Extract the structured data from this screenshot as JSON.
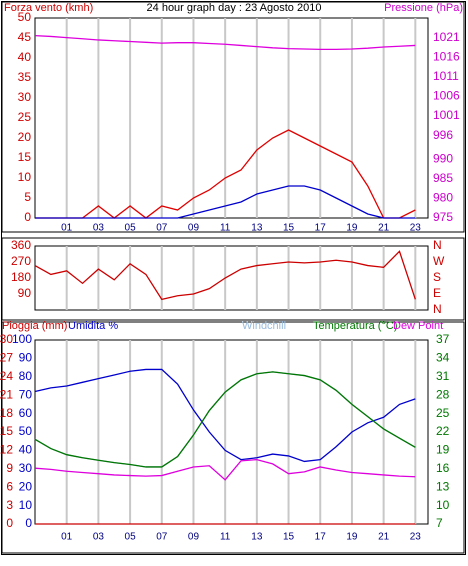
{
  "chart_data": [
    {
      "type": "line",
      "title": "24 hour graph day : 23 Agosto 2010",
      "ylabel": "Forza vento (kmh)",
      "y2label": "Pressione (hPa)",
      "ycolor": "#cc0000",
      "y2color": "#cc00cc",
      "grid": true,
      "x": [
        -1,
        0,
        1,
        2,
        3,
        4,
        5,
        6,
        7,
        8,
        9,
        10,
        11,
        12,
        13,
        14,
        15,
        16,
        17,
        18,
        19,
        20,
        21,
        22,
        23
      ],
      "xlim": [
        -1,
        23.8
      ],
      "xticks": [
        {
          "value": 1,
          "label": "01"
        },
        {
          "value": 3,
          "label": "03"
        },
        {
          "value": 5,
          "label": "05"
        },
        {
          "value": 7,
          "label": "07"
        },
        {
          "value": 9,
          "label": "09"
        },
        {
          "value": 11,
          "label": "11"
        },
        {
          "value": 13,
          "label": "13"
        },
        {
          "value": 15,
          "label": "15"
        },
        {
          "value": 17,
          "label": "17"
        },
        {
          "value": 19,
          "label": "19"
        },
        {
          "value": 21,
          "label": "21"
        },
        {
          "value": 23,
          "label": "23"
        }
      ],
      "ylim": [
        0,
        50
      ],
      "yticks": [
        0,
        5,
        10,
        15,
        20,
        25,
        30,
        35,
        40,
        45,
        50
      ],
      "y2lim": [
        975,
        1026
      ],
      "y2ticks": [
        975,
        980,
        985,
        990,
        996,
        1001,
        1006,
        1011,
        1016,
        1021
      ],
      "series": [
        {
          "color": "#e00000",
          "axis": "y",
          "values": [
            0,
            0,
            0,
            0,
            3,
            0,
            3,
            0,
            3,
            2,
            5,
            7,
            10,
            12,
            17,
            20,
            22,
            20,
            18,
            16,
            14,
            8,
            0,
            0,
            2
          ]
        },
        {
          "color": "#0000cc",
          "axis": "y",
          "values": [
            0,
            0,
            0,
            0,
            0,
            0,
            0,
            0,
            0,
            0,
            1,
            2,
            3,
            4,
            6,
            7,
            8,
            8,
            7,
            5,
            3,
            1,
            0,
            0,
            0
          ]
        },
        {
          "color": "#dd00dd",
          "axis": "y2",
          "values": [
            1021.5,
            1021.3,
            1021,
            1020.7,
            1020.4,
            1020.2,
            1020,
            1019.8,
            1019.6,
            1019.7,
            1019.7,
            1019.5,
            1019.3,
            1019,
            1018.7,
            1018.4,
            1018.2,
            1018.1,
            1018,
            1018,
            1018.1,
            1018.3,
            1018.6,
            1018.8,
            1019
          ]
        }
      ]
    },
    {
      "type": "line",
      "ycolor": "#cc0000",
      "y2color": "#cc0000",
      "grid": true,
      "x": [
        -1,
        0,
        1,
        2,
        3,
        4,
        5,
        6,
        7,
        8,
        9,
        10,
        11,
        12,
        13,
        14,
        15,
        16,
        17,
        18,
        19,
        20,
        21,
        22,
        23
      ],
      "xlim": [
        -1,
        23.8
      ],
      "xticks": [
        {
          "value": 1,
          "label": "01"
        },
        {
          "value": 3,
          "label": "03"
        },
        {
          "value": 5,
          "label": "05"
        },
        {
          "value": 7,
          "label": "07"
        },
        {
          "value": 9,
          "label": "09"
        },
        {
          "value": 11,
          "label": "11"
        },
        {
          "value": 13,
          "label": "13"
        },
        {
          "value": 15,
          "label": "15"
        },
        {
          "value": 17,
          "label": "17"
        },
        {
          "value": 19,
          "label": "19"
        },
        {
          "value": 21,
          "label": "21"
        },
        {
          "value": 23,
          "label": "23"
        }
      ],
      "ylim": [
        0,
        360
      ],
      "yticks": [
        90,
        180,
        270,
        360
      ],
      "y2lim": [
        0,
        360
      ],
      "y2ticks": [
        {
          "value": 360,
          "label": "N"
        },
        {
          "value": 270,
          "label": "W"
        },
        {
          "value": 180,
          "label": "S"
        },
        {
          "value": 90,
          "label": "E"
        },
        {
          "value": 0,
          "label": "N"
        }
      ],
      "series": [
        {
          "color": "#cc0000",
          "axis": "y",
          "values": [
            250,
            200,
            220,
            150,
            230,
            170,
            260,
            200,
            60,
            80,
            90,
            120,
            180,
            230,
            250,
            260,
            270,
            265,
            270,
            280,
            270,
            250,
            240,
            330,
            60
          ]
        }
      ]
    },
    {
      "type": "line",
      "ycolor": "#cc0000",
      "y3color": "#0000cc",
      "y2color": "#007700",
      "grid": true,
      "x": [
        -1,
        0,
        1,
        2,
        3,
        4,
        5,
        6,
        7,
        8,
        9,
        10,
        11,
        12,
        13,
        14,
        15,
        16,
        17,
        18,
        19,
        20,
        21,
        22,
        23
      ],
      "xlim": [
        -1,
        23.8
      ],
      "xticks": [
        {
          "value": 1,
          "label": "01"
        },
        {
          "value": 3,
          "label": "03"
        },
        {
          "value": 5,
          "label": "05"
        },
        {
          "value": 7,
          "label": "07"
        },
        {
          "value": 9,
          "label": "09"
        },
        {
          "value": 11,
          "label": "11"
        },
        {
          "value": 13,
          "label": "13"
        },
        {
          "value": 15,
          "label": "15"
        },
        {
          "value": 17,
          "label": "17"
        },
        {
          "value": 19,
          "label": "19"
        },
        {
          "value": 21,
          "label": "21"
        },
        {
          "value": 23,
          "label": "23"
        }
      ],
      "ylim": [
        0,
        30
      ],
      "yticks": [
        0,
        3,
        6,
        9,
        12,
        15,
        18,
        21,
        24,
        27,
        30
      ],
      "y3lim": [
        0,
        100
      ],
      "y3ticks": [
        0,
        10,
        20,
        30,
        40,
        50,
        60,
        70,
        80,
        90,
        100
      ],
      "y2lim": [
        7,
        37
      ],
      "y2ticks": [
        7,
        10,
        13,
        16,
        19,
        22,
        25,
        28,
        31,
        34,
        37
      ],
      "series": [
        {
          "name": "Pioggia (mm)",
          "color": "#cc0000",
          "axis": "y",
          "values": [
            0,
            0,
            0,
            0,
            0,
            0,
            0,
            0,
            0,
            0,
            0,
            0,
            0,
            0,
            0,
            0,
            0,
            0,
            0,
            0,
            0,
            0,
            0,
            0,
            0
          ]
        },
        {
          "name": "Umidita %",
          "color": "#0000cc",
          "axis": "y3",
          "values": [
            72,
            74,
            75,
            77,
            79,
            81,
            83,
            84,
            84,
            76,
            62,
            50,
            40,
            35,
            36,
            38,
            37,
            34,
            35,
            42,
            50,
            55,
            58,
            65,
            68
          ]
        },
        {
          "name": "Windchill",
          "color": "#99bbdd",
          "axis": "y2",
          "values": [
            20.8,
            19.3,
            18.3,
            17.8,
            17.4,
            17.0,
            16.7,
            16.3,
            16.3,
            18.0,
            21.5,
            25.5,
            28.5,
            30.5,
            31.5,
            31.8,
            31.5,
            31.2,
            30.5,
            28.8,
            26.5,
            24.5,
            22.5,
            21.0,
            19.5
          ]
        },
        {
          "name": "Temperatura (°C)",
          "color": "#007700",
          "axis": "y2",
          "values": [
            20.8,
            19.3,
            18.3,
            17.8,
            17.4,
            17.0,
            16.7,
            16.3,
            16.3,
            18.0,
            21.5,
            25.5,
            28.5,
            30.5,
            31.5,
            31.8,
            31.5,
            31.2,
            30.5,
            28.8,
            26.5,
            24.5,
            22.5,
            21.0,
            19.5
          ]
        },
        {
          "name": "Dew Point",
          "color": "#dd00dd",
          "axis": "y2",
          "values": [
            16.1,
            15.9,
            15.6,
            15.4,
            15.2,
            15.0,
            14.9,
            14.8,
            14.9,
            15.6,
            16.3,
            16.5,
            14.2,
            17.3,
            17.5,
            16.8,
            15.2,
            15.5,
            16.3,
            15.8,
            15.4,
            15.2,
            15.0,
            14.8,
            14.7
          ]
        }
      ]
    }
  ]
}
